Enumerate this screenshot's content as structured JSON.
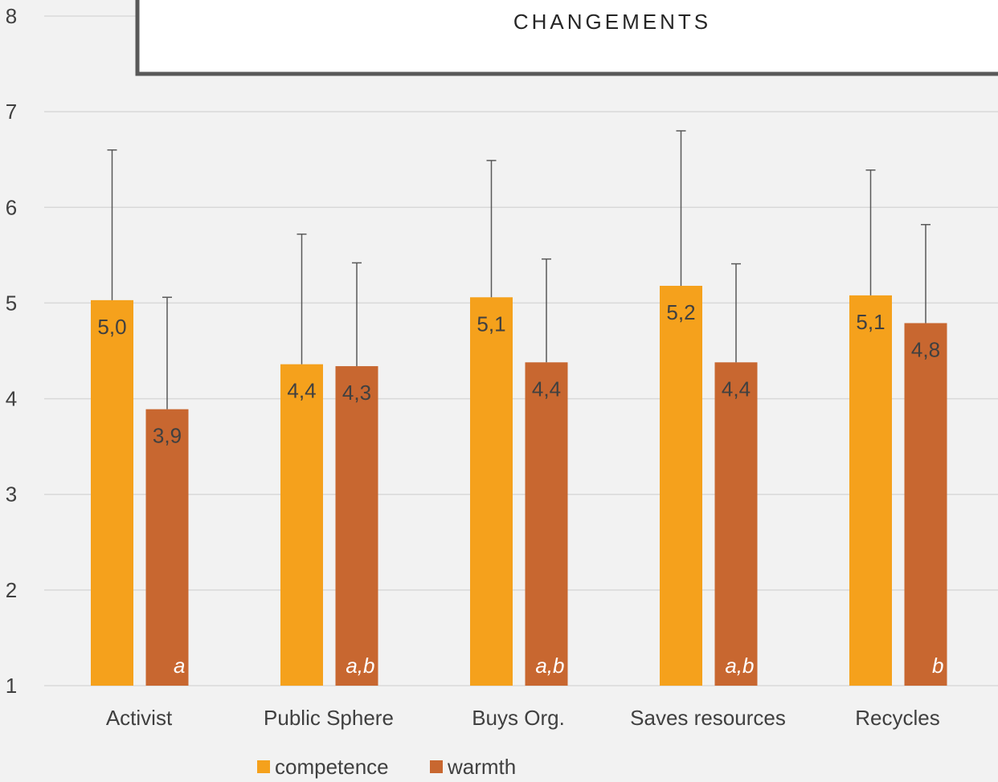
{
  "chart_data": {
    "type": "bar",
    "title": "CHANGEMENTS",
    "categories": [
      "Activist",
      "Public Sphere",
      "Buys Org.",
      "Saves resources",
      "Recycles"
    ],
    "series": [
      {
        "name": "competence",
        "color": "#f5a11c",
        "values": [
          5.03,
          4.36,
          5.06,
          5.18,
          5.08
        ],
        "errors": [
          1.57,
          1.36,
          1.43,
          1.62,
          1.31
        ],
        "value_labels": [
          "5,0",
          "4,4",
          "5,1",
          "5,2",
          "5,1"
        ]
      },
      {
        "name": "warmth",
        "color": "#c86730",
        "values": [
          3.89,
          4.34,
          4.38,
          4.38,
          4.79
        ],
        "errors": [
          1.17,
          1.08,
          1.08,
          1.03,
          1.03
        ],
        "value_labels": [
          "3,9",
          "4,3",
          "4,4",
          "4,4",
          "4,8"
        ]
      }
    ],
    "annotations": [
      "a",
      "a,b",
      "a,b",
      "a,b",
      "b"
    ],
    "ylim": [
      1,
      8
    ],
    "yticks": [
      1,
      2,
      3,
      4,
      5,
      6,
      7,
      8
    ],
    "grid": true,
    "legend": "bottom"
  }
}
